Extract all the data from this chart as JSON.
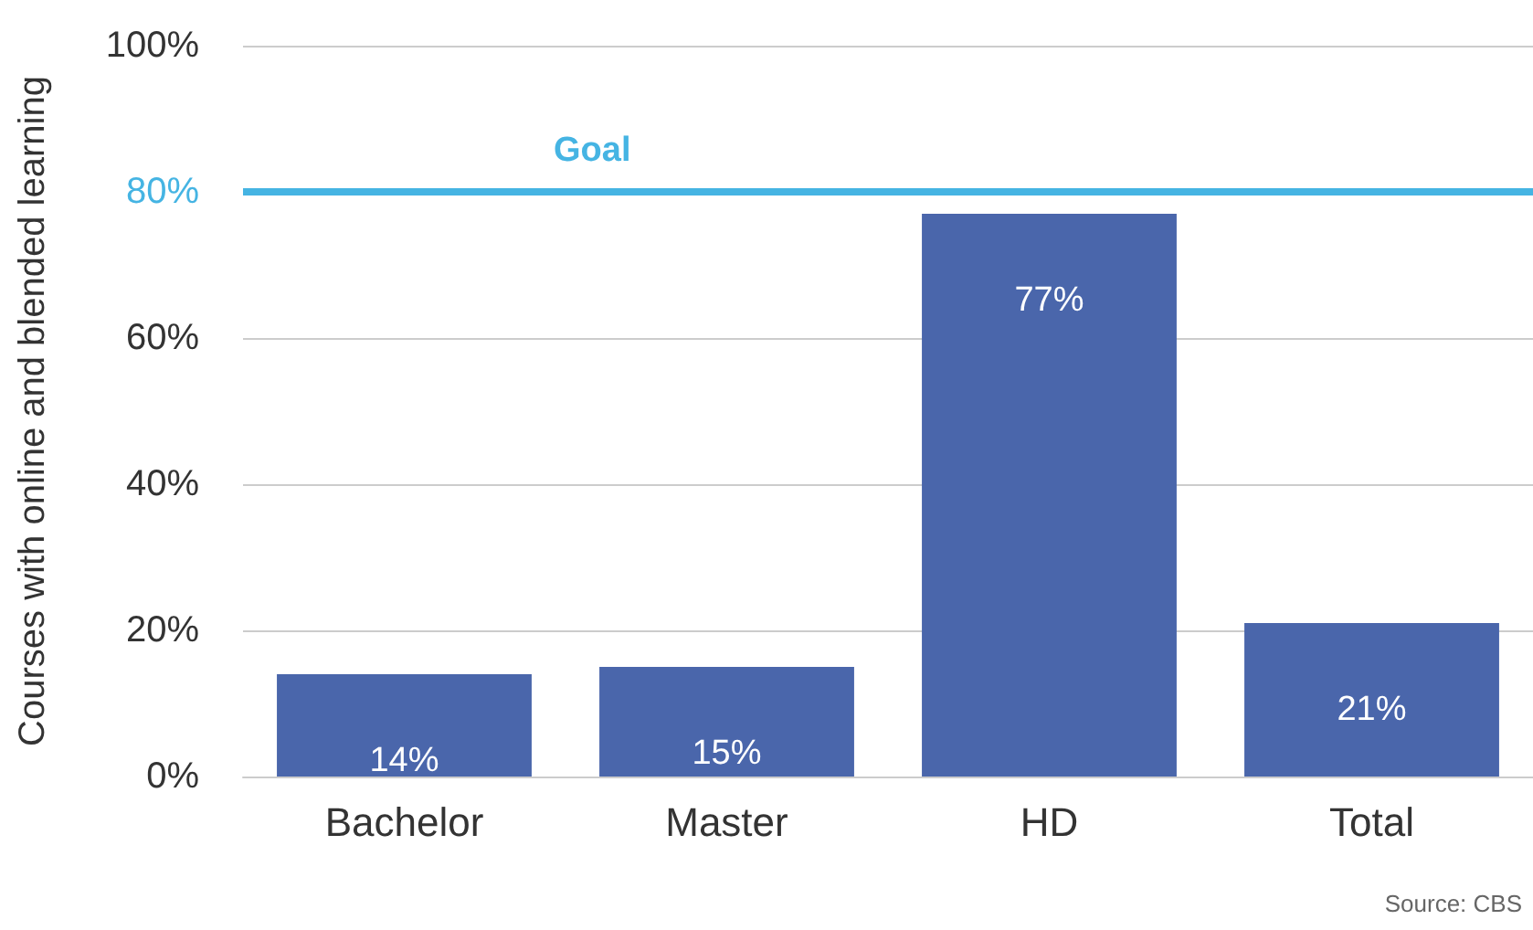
{
  "chart_data": {
    "type": "bar",
    "ylabel": "Courses with online and blended learning",
    "categories": [
      "Bachelor",
      "Master",
      "HD",
      "Total"
    ],
    "values": [
      14,
      15,
      77,
      21
    ],
    "color": "#4a66ab",
    "value_labels": [
      "14%",
      "15%",
      "77%",
      "21%"
    ],
    "ylim": [
      0,
      100
    ],
    "yticks": [
      {
        "value": 0,
        "label": "0%"
      },
      {
        "value": 20,
        "label": "20%"
      },
      {
        "value": 40,
        "label": "40%"
      },
      {
        "value": 60,
        "label": "60%"
      },
      {
        "value": 80,
        "label": "80%"
      },
      {
        "value": 100,
        "label": "100%"
      }
    ],
    "grid": "y",
    "ref_lines": [
      {
        "axis": "y",
        "value": 80,
        "label": "Goal",
        "color": "#45b4e3"
      }
    ],
    "annotations": [
      "Source: CBS"
    ]
  }
}
